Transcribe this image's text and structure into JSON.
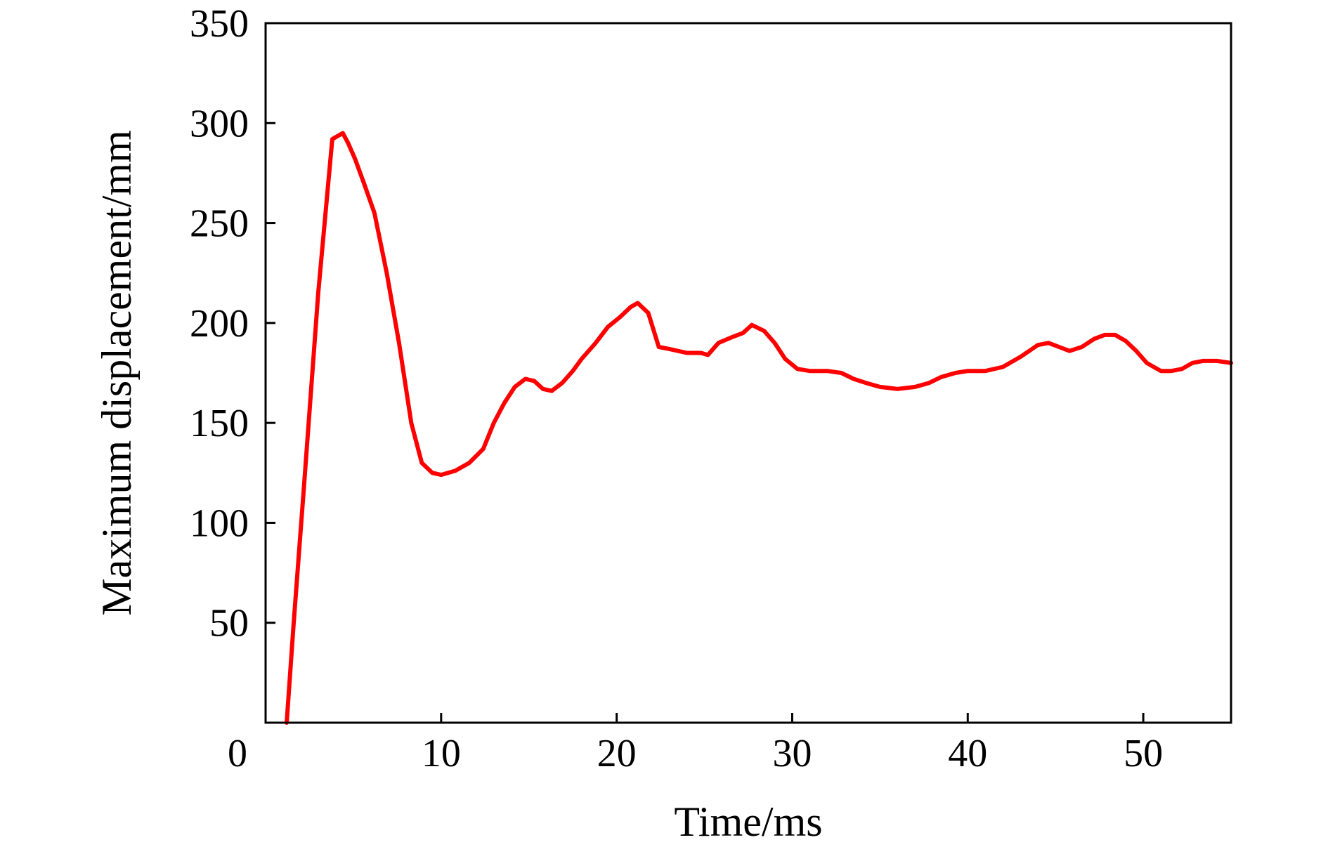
{
  "chart_data": {
    "type": "line",
    "xlabel": "Time/ms",
    "ylabel": "Maximum displacement/mm",
    "xlim": [
      0,
      55
    ],
    "ylim": [
      0,
      350
    ],
    "x_ticks": [
      0,
      10,
      20,
      30,
      40,
      50
    ],
    "y_ticks": [
      50,
      100,
      150,
      200,
      250,
      300,
      350
    ],
    "x_tick_labels": [
      "0",
      "10",
      "20",
      "30",
      "40",
      "50"
    ],
    "y_tick_labels": [
      "50",
      "100",
      "150",
      "200",
      "250",
      "300",
      "350"
    ],
    "grid": false,
    "legend": "none",
    "series": [
      {
        "color": "#ff0000",
        "x": [
          1.2,
          1.6,
          2.2,
          3.0,
          3.8,
          4.4,
          4.7,
          5.1,
          5.6,
          6.2,
          6.9,
          7.6,
          8.3,
          8.9,
          9.5,
          10.0,
          10.8,
          11.6,
          12.4,
          13.0,
          13.6,
          14.2,
          14.8,
          15.3,
          15.8,
          16.3,
          16.9,
          17.5,
          18.0,
          18.8,
          19.5,
          20.2,
          20.8,
          21.2,
          21.8,
          22.4,
          23.0,
          24.0,
          24.8,
          25.2,
          25.8,
          26.6,
          27.2,
          27.7,
          28.4,
          29.0,
          29.6,
          30.3,
          31.0,
          32.0,
          32.8,
          33.5,
          34.2,
          35.0,
          36.0,
          37.0,
          37.8,
          38.5,
          39.3,
          40.0,
          41.0,
          42.0,
          43.0,
          44.0,
          44.6,
          45.2,
          45.8,
          46.5,
          47.2,
          47.8,
          48.4,
          49.0,
          49.6,
          50.2,
          51.0,
          51.6,
          52.2,
          52.8,
          53.4,
          54.2,
          55.0
        ],
        "values": [
          0,
          50,
          120,
          215,
          292,
          295,
          290,
          282,
          270,
          255,
          225,
          190,
          150,
          130,
          125,
          124,
          126,
          130,
          137,
          150,
          160,
          168,
          172,
          171,
          167,
          166,
          170,
          176,
          182,
          190,
          198,
          203,
          208,
          210,
          205,
          188,
          187,
          185,
          185,
          184,
          190,
          193,
          195,
          199,
          196,
          190,
          182,
          177,
          176,
          176,
          175,
          172,
          170,
          168,
          167,
          168,
          170,
          173,
          175,
          176,
          176,
          178,
          183,
          189,
          190,
          188,
          186,
          188,
          192,
          194,
          194,
          191,
          186,
          180,
          176,
          176,
          177,
          180,
          181,
          181,
          180
        ]
      }
    ]
  }
}
